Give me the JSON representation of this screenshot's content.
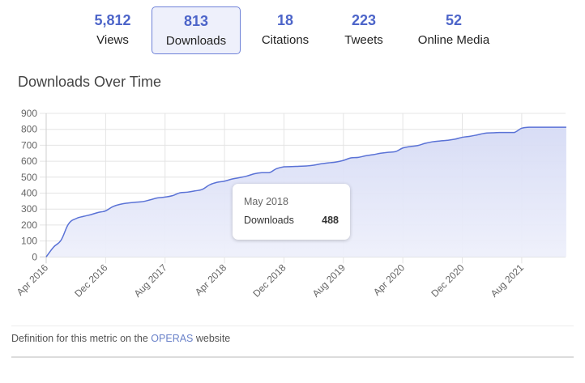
{
  "metrics": [
    {
      "value": "5,812",
      "label": "Views",
      "active": false
    },
    {
      "value": "813",
      "label": "Downloads",
      "active": true
    },
    {
      "value": "18",
      "label": "Citations",
      "active": false
    },
    {
      "value": "223",
      "label": "Tweets",
      "active": false
    },
    {
      "value": "52",
      "label": "Online Media",
      "active": false
    }
  ],
  "chart_title": "Downloads Over Time",
  "tooltip": {
    "date": "May 2018",
    "series": "Downloads",
    "value": "488"
  },
  "footer": {
    "prefix": "Definition for this metric on the ",
    "link": "OPERAS",
    "suffix": " website"
  },
  "colors": {
    "accent": "#4d65c9",
    "line": "#5a72d6",
    "fill": "#dfe3f7",
    "grid": "#e2e2e2"
  },
  "chart_data": {
    "type": "area",
    "title": "Downloads Over Time",
    "xlabel": "",
    "ylabel": "",
    "ylim": [
      0,
      900
    ],
    "yticks": [
      0,
      100,
      200,
      300,
      400,
      500,
      600,
      700,
      800,
      900
    ],
    "xtick_labels": [
      "Apr 2016",
      "Dec 2016",
      "Aug 2017",
      "Apr 2018",
      "Dec 2018",
      "Aug 2019",
      "Apr 2020",
      "Dec 2020",
      "Aug 2021"
    ],
    "xtick_every_months": 8,
    "grid": true,
    "legend": "none",
    "series": [
      {
        "name": "Downloads",
        "start": "Apr 2016",
        "frequency": "monthly",
        "values": [
          0,
          62,
          105,
          206,
          240,
          254,
          265,
          279,
          289,
          316,
          330,
          338,
          343,
          347,
          358,
          370,
          375,
          384,
          402,
          406,
          414,
          423,
          452,
          468,
          475,
          488,
          497,
          507,
          521,
          528,
          528,
          553,
          565,
          566,
          568,
          570,
          575,
          584,
          590,
          595,
          605,
          621,
          624,
          634,
          641,
          650,
          656,
          660,
          683,
          692,
          698,
          712,
          722,
          727,
          731,
          738,
          750,
          756,
          765,
          775,
          778,
          780,
          780,
          780,
          807,
          813,
          813,
          813,
          813,
          813,
          813
        ]
      }
    ]
  }
}
